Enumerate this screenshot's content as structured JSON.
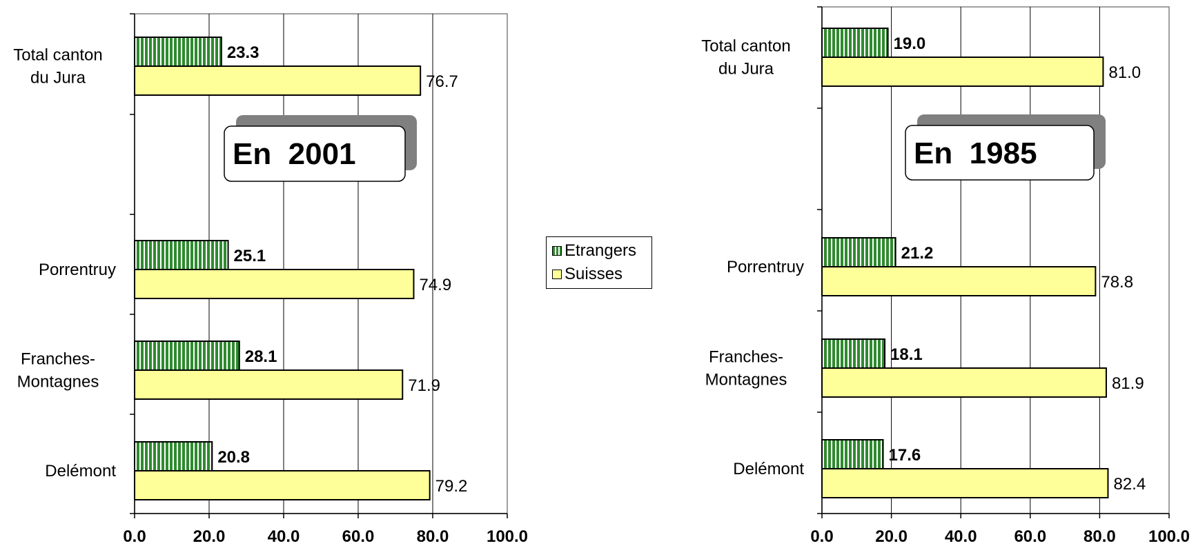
{
  "legend": {
    "etrangers": "Etrangers",
    "suisses": "Suisses"
  },
  "colors": {
    "etrangers": "#2f8a2f",
    "suisses": "#ffff99",
    "grid": "#000000",
    "frame": "#808080",
    "shadow": "#808080"
  },
  "chart_data": [
    {
      "type": "bar",
      "orientation": "horizontal",
      "annotation": "En  2001",
      "categories": [
        [
          "Total  canton",
          "du  Jura"
        ],
        [
          "Porrentruy"
        ],
        [
          "Franches-",
          "Montagnes"
        ],
        [
          "Delémont"
        ]
      ],
      "series": [
        {
          "name": "Etrangers",
          "values": [
            23.3,
            25.1,
            28.1,
            20.8
          ],
          "labels": [
            "23.3",
            "25.1",
            "28.1",
            "20.8"
          ]
        },
        {
          "name": "Suisses",
          "values": [
            76.7,
            74.9,
            71.9,
            79.2
          ],
          "labels": [
            "76.7",
            "74.9",
            "71.9",
            "79.2"
          ]
        }
      ],
      "xlim": [
        0,
        100
      ],
      "xticks": [
        "0.0",
        "20.0",
        "40.0",
        "60.0",
        "80.0",
        "100.0"
      ],
      "grid": "vertical"
    },
    {
      "type": "bar",
      "orientation": "horizontal",
      "annotation": "En  1985",
      "categories": [
        [
          "Total  canton",
          "du  Jura"
        ],
        [
          "Porrentruy"
        ],
        [
          "Franches-",
          "Montagnes"
        ],
        [
          "Delémont"
        ]
      ],
      "series": [
        {
          "name": "Etrangers",
          "values": [
            19.0,
            21.2,
            18.1,
            17.6
          ],
          "labels": [
            "19.0",
            "21.2",
            "18.1",
            "17.6"
          ]
        },
        {
          "name": "Suisses",
          "values": [
            81.0,
            78.8,
            81.9,
            82.4
          ],
          "labels": [
            "81.0",
            "78.8",
            "81.9",
            "82.4"
          ]
        }
      ],
      "xlim": [
        0,
        100
      ],
      "xticks": [
        "0.0",
        "20.0",
        "40.0",
        "60.0",
        "80.0",
        "100.0"
      ],
      "grid": "vertical"
    }
  ]
}
